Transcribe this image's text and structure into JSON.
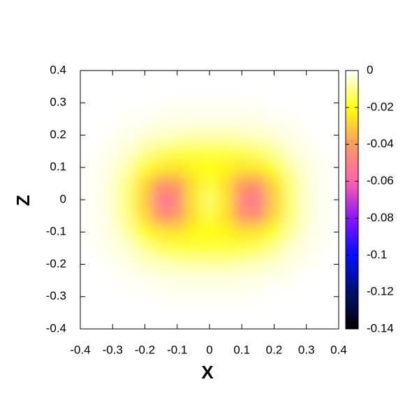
{
  "chart_data": {
    "type": "heatmap",
    "xlabel": "X",
    "ylabel": "Z",
    "x": [
      -0.4,
      -0.35,
      -0.3,
      -0.25,
      -0.2,
      -0.15,
      -0.1,
      -0.05,
      0,
      0.05,
      0.1,
      0.15,
      0.2,
      0.25,
      0.3,
      0.35,
      0.4
    ],
    "y": [
      -0.4,
      -0.35,
      -0.3,
      -0.25,
      -0.2,
      -0.15,
      -0.1,
      -0.05,
      0,
      0.05,
      0.1,
      0.15,
      0.2,
      0.25,
      0.3,
      0.35,
      0.4
    ],
    "z": [
      [
        0,
        0,
        0,
        0,
        0,
        0,
        0,
        0,
        0,
        0,
        0,
        0,
        0,
        0,
        0,
        0,
        0
      ],
      [
        0,
        0,
        0,
        0,
        0,
        0,
        0,
        0,
        0,
        0,
        0,
        0,
        0,
        0,
        0,
        0,
        0
      ],
      [
        0,
        0,
        0,
        0,
        0,
        -0.0005,
        -0.001,
        -0.001,
        -0.001,
        -0.001,
        -0.001,
        -0.0005,
        0,
        0,
        0,
        0,
        0
      ],
      [
        0,
        0,
        0,
        -0.001,
        -0.001,
        -0.002,
        -0.002,
        -0.002,
        -0.002,
        -0.002,
        -0.002,
        -0.002,
        -0.001,
        -0.001,
        0,
        0,
        0
      ],
      [
        0,
        0,
        -0.001,
        -0.002,
        -0.004,
        -0.005,
        -0.006,
        -0.007,
        -0.007,
        -0.007,
        -0.006,
        -0.005,
        -0.004,
        -0.002,
        -0.001,
        0,
        0
      ],
      [
        0,
        -0.0005,
        -0.002,
        -0.004,
        -0.009,
        -0.013,
        -0.015,
        -0.016,
        -0.016,
        -0.016,
        -0.015,
        -0.013,
        -0.009,
        -0.004,
        -0.002,
        -0.0005,
        0
      ],
      [
        0,
        -0.001,
        -0.003,
        -0.008,
        -0.018,
        -0.024,
        -0.025,
        -0.022,
        -0.02,
        -0.022,
        -0.025,
        -0.024,
        -0.018,
        -0.008,
        -0.003,
        -0.001,
        0
      ],
      [
        0,
        -0.001,
        -0.004,
        -0.011,
        -0.027,
        -0.043,
        -0.04,
        -0.026,
        -0.016,
        -0.026,
        -0.04,
        -0.043,
        -0.027,
        -0.011,
        -0.004,
        -0.001,
        0
      ],
      [
        0,
        -0.001,
        -0.004,
        -0.012,
        -0.03,
        -0.052,
        -0.048,
        -0.025,
        -0.012,
        -0.025,
        -0.048,
        -0.052,
        -0.03,
        -0.012,
        -0.004,
        -0.001,
        0
      ],
      [
        0,
        -0.001,
        -0.004,
        -0.011,
        -0.027,
        -0.043,
        -0.04,
        -0.026,
        -0.016,
        -0.026,
        -0.04,
        -0.043,
        -0.027,
        -0.011,
        -0.004,
        -0.001,
        0
      ],
      [
        0,
        -0.001,
        -0.003,
        -0.008,
        -0.018,
        -0.024,
        -0.025,
        -0.022,
        -0.02,
        -0.022,
        -0.025,
        -0.024,
        -0.018,
        -0.008,
        -0.003,
        -0.001,
        0
      ],
      [
        0,
        -0.0005,
        -0.002,
        -0.004,
        -0.009,
        -0.013,
        -0.015,
        -0.016,
        -0.016,
        -0.016,
        -0.015,
        -0.013,
        -0.009,
        -0.004,
        -0.002,
        -0.0005,
        0
      ],
      [
        0,
        0,
        -0.001,
        -0.002,
        -0.004,
        -0.005,
        -0.006,
        -0.007,
        -0.007,
        -0.007,
        -0.006,
        -0.005,
        -0.004,
        -0.002,
        -0.001,
        0,
        0
      ],
      [
        0,
        0,
        0,
        -0.001,
        -0.001,
        -0.002,
        -0.002,
        -0.002,
        -0.002,
        -0.002,
        -0.002,
        -0.002,
        -0.001,
        -0.001,
        0,
        0,
        0
      ],
      [
        0,
        0,
        0,
        0,
        0,
        -0.0005,
        -0.001,
        -0.001,
        -0.001,
        -0.001,
        -0.001,
        -0.0005,
        0,
        0,
        0,
        0,
        0
      ],
      [
        0,
        0,
        0,
        0,
        0,
        0,
        0,
        0,
        0,
        0,
        0,
        0,
        0,
        0,
        0,
        0,
        0
      ],
      [
        0,
        0,
        0,
        0,
        0,
        0,
        0,
        0,
        0,
        0,
        0,
        0,
        0,
        0,
        0,
        0,
        0
      ]
    ],
    "xlim": [
      -0.4,
      0.4
    ],
    "ylim": [
      -0.4,
      0.4
    ],
    "xticks": [
      -0.4,
      -0.3,
      -0.2,
      -0.1,
      0,
      0.1,
      0.2,
      0.3,
      0.4
    ],
    "yticks": [
      -0.4,
      -0.3,
      -0.2,
      -0.1,
      0,
      0.1,
      0.2,
      0.3,
      0.4
    ],
    "clim": [
      -0.14,
      0
    ],
    "cticks": [
      0,
      -0.02,
      -0.04,
      -0.06,
      -0.08,
      -0.1,
      -0.12,
      -0.14
    ],
    "colormap": [
      "#000000",
      "#00106a",
      "#0010ff",
      "#8a14ff",
      "#ff60b0",
      "#ff9a60",
      "#ffff10",
      "#ffffff"
    ]
  }
}
